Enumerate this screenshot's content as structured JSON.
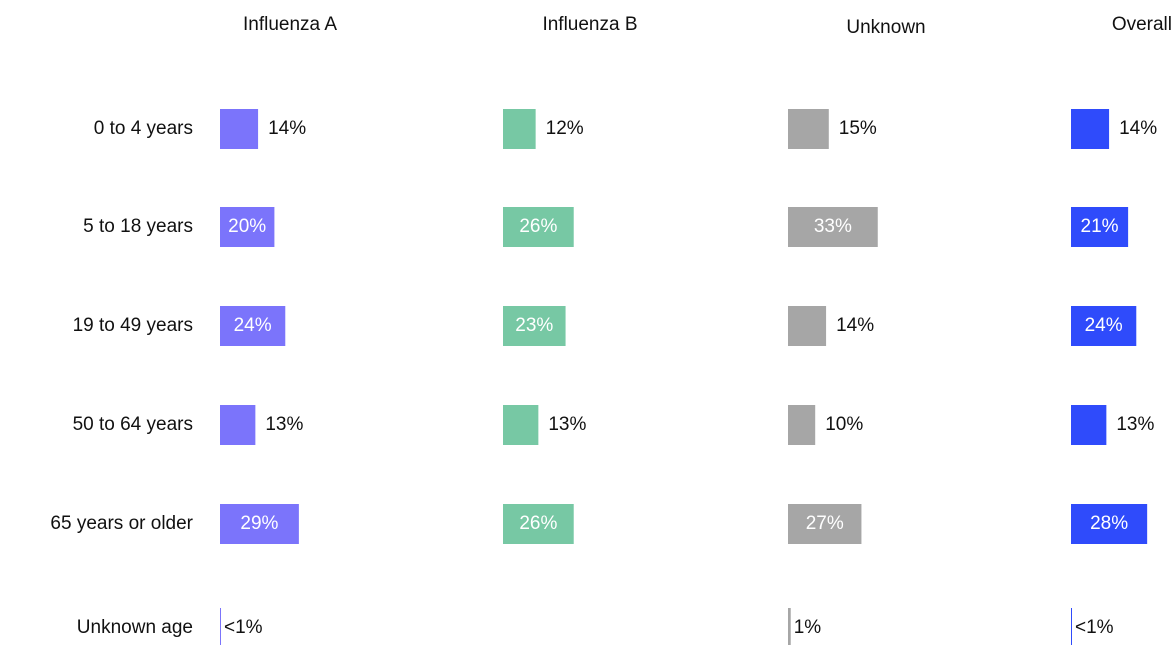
{
  "chart_data": {
    "type": "bar",
    "categories": [
      "0 to 4 years",
      "5 to 18 years",
      "19 to 49 years",
      "50 to 64 years",
      "65 years or older",
      "Unknown age"
    ],
    "series": [
      {
        "name": "Influenza A",
        "color": "#7b74fb",
        "values": [
          14,
          20,
          24,
          13,
          29,
          0.3
        ],
        "value_labels": [
          "14%",
          "20%",
          "24%",
          "13%",
          "29%",
          "<1%"
        ]
      },
      {
        "name": "Influenza B",
        "color": "#77c8a4",
        "values": [
          12,
          26,
          23,
          13,
          26,
          null
        ],
        "value_labels": [
          "12%",
          "26%",
          "23%",
          "13%",
          "26%",
          null
        ]
      },
      {
        "name": "Unknown",
        "color": "#a6a6a6",
        "values": [
          15,
          33,
          14,
          10,
          27,
          1
        ],
        "value_labels": [
          "15%",
          "33%",
          "14%",
          "10%",
          "27%",
          "1%"
        ]
      },
      {
        "name": "Overall",
        "color": "#2f4bfb",
        "values": [
          14,
          21,
          24,
          13,
          28,
          0.3
        ],
        "value_labels": [
          "14%",
          "21%",
          "24%",
          "13%",
          "28%",
          "<1%"
        ]
      }
    ]
  }
}
